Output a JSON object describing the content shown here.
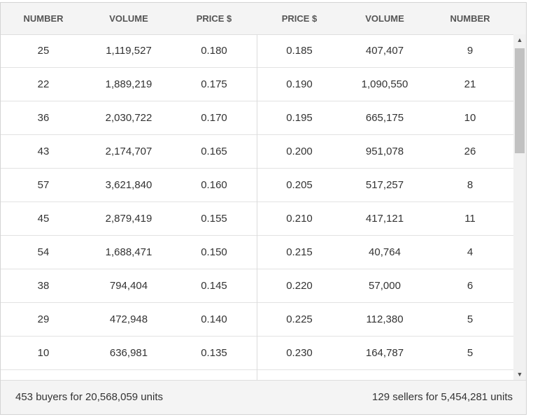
{
  "headers": {
    "buy_number": "NUMBER",
    "buy_volume": "VOLUME",
    "buy_price": "PRICE $",
    "sell_price": "PRICE $",
    "sell_volume": "VOLUME",
    "sell_number": "NUMBER"
  },
  "rows": [
    {
      "buy_number": "25",
      "buy_volume": "1,119,527",
      "buy_price": "0.180",
      "sell_price": "0.185",
      "sell_volume": "407,407",
      "sell_number": "9"
    },
    {
      "buy_number": "22",
      "buy_volume": "1,889,219",
      "buy_price": "0.175",
      "sell_price": "0.190",
      "sell_volume": "1,090,550",
      "sell_number": "21"
    },
    {
      "buy_number": "36",
      "buy_volume": "2,030,722",
      "buy_price": "0.170",
      "sell_price": "0.195",
      "sell_volume": "665,175",
      "sell_number": "10"
    },
    {
      "buy_number": "43",
      "buy_volume": "2,174,707",
      "buy_price": "0.165",
      "sell_price": "0.200",
      "sell_volume": "951,078",
      "sell_number": "26"
    },
    {
      "buy_number": "57",
      "buy_volume": "3,621,840",
      "buy_price": "0.160",
      "sell_price": "0.205",
      "sell_volume": "517,257",
      "sell_number": "8"
    },
    {
      "buy_number": "45",
      "buy_volume": "2,879,419",
      "buy_price": "0.155",
      "sell_price": "0.210",
      "sell_volume": "417,121",
      "sell_number": "11"
    },
    {
      "buy_number": "54",
      "buy_volume": "1,688,471",
      "buy_price": "0.150",
      "sell_price": "0.215",
      "sell_volume": "40,764",
      "sell_number": "4"
    },
    {
      "buy_number": "38",
      "buy_volume": "794,404",
      "buy_price": "0.145",
      "sell_price": "0.220",
      "sell_volume": "57,000",
      "sell_number": "6"
    },
    {
      "buy_number": "29",
      "buy_volume": "472,948",
      "buy_price": "0.140",
      "sell_price": "0.225",
      "sell_volume": "112,380",
      "sell_number": "5"
    },
    {
      "buy_number": "10",
      "buy_volume": "636,981",
      "buy_price": "0.135",
      "sell_price": "0.230",
      "sell_volume": "164,787",
      "sell_number": "5"
    },
    {
      "buy_number": "",
      "buy_volume": "",
      "buy_price": "",
      "sell_price": "",
      "sell_volume": "",
      "sell_number": ""
    }
  ],
  "footer": {
    "buyers_summary": "453 buyers for 20,568,059 units",
    "sellers_summary": "129 sellers for 5,454,281 units"
  },
  "scroll": {
    "up_icon": "▲",
    "down_icon": "▼"
  }
}
